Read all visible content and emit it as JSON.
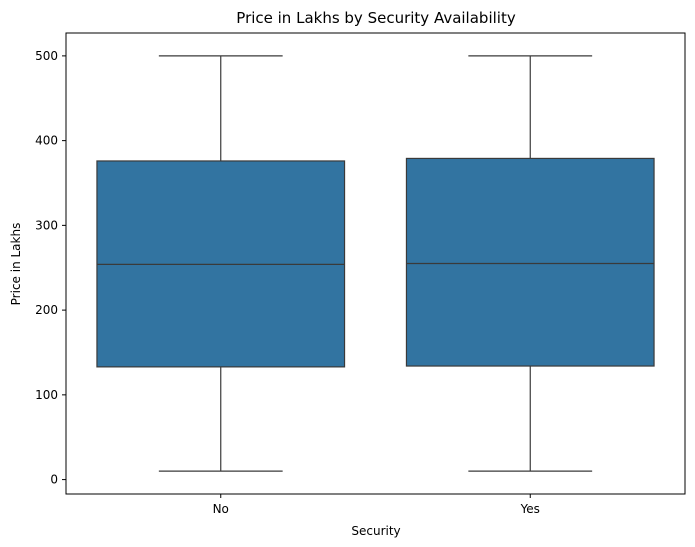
{
  "chart_data": {
    "type": "box",
    "title": "Price in Lakhs by Security Availability",
    "xlabel": "Security",
    "ylabel": "Price in Lakhs",
    "categories": [
      "No",
      "Yes"
    ],
    "boxes": [
      {
        "category": "No",
        "whisker_low": 10,
        "q1": 133,
        "median": 254,
        "q3": 376,
        "whisker_high": 500
      },
      {
        "category": "Yes",
        "whisker_low": 10,
        "q1": 134,
        "median": 255,
        "q3": 379,
        "whisker_high": 500
      }
    ],
    "yticks": [
      0,
      100,
      200,
      300,
      400,
      500
    ],
    "ylim": [
      -17,
      527
    ],
    "grid": false,
    "colors": {
      "box": "#3274a1",
      "line": "#3a3a3a"
    }
  }
}
